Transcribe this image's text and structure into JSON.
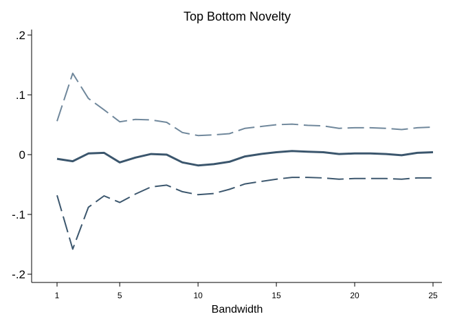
{
  "chart_data": {
    "type": "line",
    "title": "Top Bottom Novelty",
    "xlabel": "Bandwidth",
    "ylabel": "",
    "xlim": [
      1,
      25
    ],
    "ylim": [
      -0.2,
      0.2
    ],
    "x_ticks": [
      {
        "value": 1,
        "label": "1"
      },
      {
        "value": 5,
        "label": "5"
      },
      {
        "value": 10,
        "label": "10"
      },
      {
        "value": 15,
        "label": "15"
      },
      {
        "value": 20,
        "label": "20"
      },
      {
        "value": 25,
        "label": "25"
      }
    ],
    "y_ticks": [
      {
        "value": 0.2,
        "label": ".2"
      },
      {
        "value": 0.1,
        "label": ".1"
      },
      {
        "value": 0,
        "label": "0"
      },
      {
        "value": -0.1,
        "label": "-.1"
      },
      {
        "value": -0.2,
        "label": "-.2"
      }
    ],
    "grid": false,
    "x": [
      1,
      2,
      3,
      4,
      5,
      6,
      7,
      8,
      9,
      10,
      11,
      12,
      13,
      14,
      15,
      16,
      17,
      18,
      19,
      20,
      21,
      22,
      23,
      24,
      25
    ],
    "series": [
      {
        "key": "upper",
        "style": "dashed",
        "color": "#6f879b",
        "values": [
          0.056,
          0.136,
          0.094,
          0.075,
          0.055,
          0.059,
          0.058,
          0.054,
          0.037,
          0.032,
          0.033,
          0.035,
          0.044,
          0.047,
          0.05,
          0.051,
          0.049,
          0.048,
          0.044,
          0.045,
          0.045,
          0.044,
          0.042,
          0.045,
          0.046
        ]
      },
      {
        "key": "estimate",
        "style": "solid",
        "color": "#3b566d",
        "values": [
          -0.007,
          -0.011,
          0.002,
          0.003,
          -0.013,
          -0.005,
          0.001,
          0.0,
          -0.013,
          -0.018,
          -0.016,
          -0.012,
          -0.003,
          0.001,
          0.004,
          0.006,
          0.005,
          0.004,
          0.001,
          0.002,
          0.002,
          0.001,
          -0.001,
          0.003,
          0.004
        ]
      },
      {
        "key": "lower",
        "style": "dashed",
        "color": "#3b566d",
        "values": [
          -0.068,
          -0.158,
          -0.088,
          -0.069,
          -0.08,
          -0.066,
          -0.054,
          -0.051,
          -0.062,
          -0.067,
          -0.065,
          -0.058,
          -0.049,
          -0.045,
          -0.041,
          -0.038,
          -0.038,
          -0.039,
          -0.041,
          -0.04,
          -0.04,
          -0.04,
          -0.041,
          -0.039,
          -0.039
        ]
      }
    ]
  }
}
